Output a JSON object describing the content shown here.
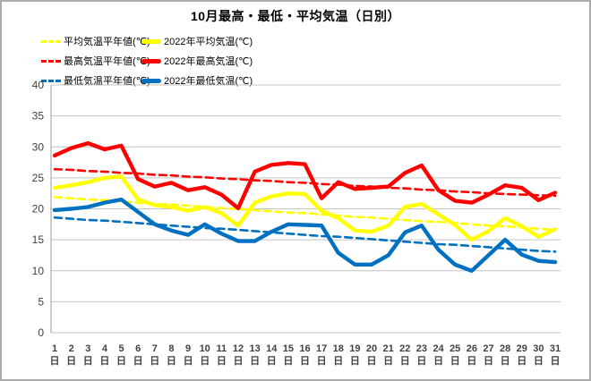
{
  "title": "10月最高・最低・平均気温（日別）",
  "colors": {
    "red": "#ff0000",
    "yellow": "#ffff00",
    "blue": "#0070c0",
    "grid": "#c3c3c3",
    "axis": "#9a9a9a",
    "tick_text": "#404040",
    "page_border": "#ababab"
  },
  "legend": {
    "items": [
      {
        "label": "平均気温平年値(℃)",
        "color": "#ffff00",
        "style": "dashed"
      },
      {
        "label": "2022年平均気温(℃)",
        "color": "#ffff00",
        "style": "solid"
      },
      {
        "label": "最高気温平年値(℃)",
        "color": "#ff0000",
        "style": "dashed"
      },
      {
        "label": "2022年最高気温(℃)",
        "color": "#ff0000",
        "style": "solid"
      },
      {
        "label": "最低気温平年値(℃)",
        "color": "#0070c0",
        "style": "dashed"
      },
      {
        "label": "2022年最低気温(℃)",
        "color": "#0070c0",
        "style": "solid"
      }
    ]
  },
  "chart_data": {
    "type": "line",
    "title": "10月最高・最低・平均気温（日別）",
    "xlabel": "",
    "ylabel": "",
    "ylim": [
      0,
      40
    ],
    "y_ticks": [
      0,
      5,
      10,
      15,
      20,
      25,
      30,
      35,
      40
    ],
    "grid": true,
    "legend_position": "top-left",
    "x": [
      1,
      2,
      3,
      4,
      5,
      6,
      7,
      8,
      9,
      10,
      11,
      12,
      13,
      14,
      15,
      16,
      17,
      18,
      19,
      20,
      21,
      22,
      23,
      24,
      25,
      26,
      27,
      28,
      29,
      30,
      31
    ],
    "x_label_suffix": "日",
    "series": [
      {
        "name": "平均気温平年値(℃)",
        "color": "#ffff00",
        "dashed": true,
        "values": [
          21.9,
          21.7,
          21.5,
          21.4,
          21.2,
          21.0,
          20.8,
          20.7,
          20.5,
          20.3,
          20.1,
          20.0,
          19.8,
          19.6,
          19.4,
          19.3,
          19.1,
          18.9,
          18.7,
          18.6,
          18.4,
          18.2,
          18.0,
          17.9,
          17.7,
          17.5,
          17.3,
          17.2,
          17.0,
          16.8,
          16.6
        ]
      },
      {
        "name": "2022年平均気温(℃)",
        "color": "#ffff00",
        "dashed": false,
        "values": [
          23.4,
          23.8,
          24.3,
          25.0,
          25.2,
          21.5,
          20.6,
          20.3,
          19.7,
          20.3,
          19.3,
          17.3,
          21.0,
          22.0,
          22.5,
          22.4,
          19.7,
          18.5,
          16.5,
          16.3,
          17.3,
          20.3,
          20.8,
          19.1,
          17.4,
          15.0,
          16.4,
          18.5,
          17.2,
          15.5,
          16.7
        ]
      },
      {
        "name": "最高気温平年値(℃)",
        "color": "#ff0000",
        "dashed": true,
        "values": [
          26.4,
          26.3,
          26.1,
          26.0,
          25.8,
          25.7,
          25.5,
          25.4,
          25.2,
          25.1,
          24.9,
          24.8,
          24.6,
          24.5,
          24.3,
          24.2,
          24.0,
          23.9,
          23.7,
          23.6,
          23.4,
          23.3,
          23.1,
          23.0,
          22.8,
          22.7,
          22.5,
          22.4,
          22.3,
          22.2,
          22.1
        ]
      },
      {
        "name": "2022年最高気温(℃)",
        "color": "#ff0000",
        "dashed": false,
        "values": [
          28.6,
          29.8,
          30.6,
          29.6,
          30.2,
          24.8,
          23.6,
          24.2,
          23.0,
          23.5,
          22.3,
          20.1,
          26.0,
          27.1,
          27.4,
          27.2,
          21.7,
          24.3,
          23.2,
          23.4,
          23.6,
          25.8,
          27.0,
          23.0,
          21.3,
          21.0,
          22.3,
          23.8,
          23.4,
          21.4,
          22.6
        ]
      },
      {
        "name": "最低気温平年値(℃)",
        "color": "#0070c0",
        "dashed": true,
        "values": [
          18.6,
          18.4,
          18.2,
          18.1,
          17.9,
          17.7,
          17.5,
          17.3,
          17.1,
          16.9,
          16.8,
          16.6,
          16.4,
          16.2,
          16.0,
          15.8,
          15.6,
          15.5,
          15.3,
          15.1,
          14.9,
          14.7,
          14.5,
          14.3,
          14.2,
          14.0,
          13.8,
          13.6,
          13.4,
          13.2,
          13.1
        ]
      },
      {
        "name": "2022年最低気温(℃)",
        "color": "#0070c0",
        "dashed": false,
        "values": [
          19.8,
          20.0,
          20.3,
          21.0,
          21.5,
          19.5,
          17.5,
          16.5,
          15.8,
          17.5,
          16.0,
          14.8,
          14.8,
          16.3,
          17.5,
          17.4,
          17.3,
          12.9,
          11.0,
          11.0,
          12.5,
          16.2,
          17.3,
          13.4,
          11.0,
          10.0,
          12.5,
          15.0,
          12.6,
          11.6,
          11.4
        ]
      }
    ]
  }
}
